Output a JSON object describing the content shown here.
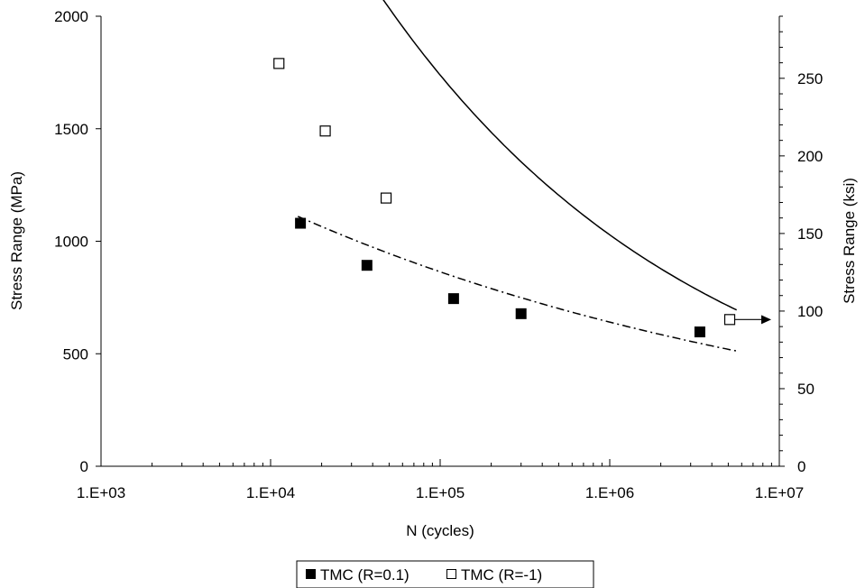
{
  "chart_data": {
    "type": "scatter",
    "xlabel": "N (cycles)",
    "ylabel": "Stress Range (MPa)",
    "y2label": "Stress Range (ksi)",
    "xscale": "log",
    "xlim": [
      1000,
      10000000
    ],
    "ylim": [
      0,
      2000
    ],
    "y2lim": [
      0,
      290
    ],
    "x_ticks": [
      1000,
      10000,
      100000,
      1000000,
      10000000
    ],
    "x_tick_labels": [
      "1.E+03",
      "1.E+04",
      "1.E+05",
      "1.E+06",
      "1.E+07"
    ],
    "y_ticks": [
      0,
      500,
      1000,
      1500,
      2000
    ],
    "y_tick_labels": [
      "0",
      "500",
      "1000",
      "1500",
      "2000"
    ],
    "y2_ticks": [
      0,
      50,
      100,
      150,
      200,
      250
    ],
    "y2_tick_labels": [
      "0",
      "50",
      "100",
      "150",
      "200",
      "250"
    ],
    "grid": false,
    "legend_position": "bottom",
    "series": [
      {
        "name": "TMC (R=0.1)",
        "marker": "filled-square",
        "color": "#000000",
        "points": [
          {
            "x": 15000,
            "y": 1080
          },
          {
            "x": 37000,
            "y": 893
          },
          {
            "x": 120000,
            "y": 745
          },
          {
            "x": 300000,
            "y": 678
          },
          {
            "x": 3400000,
            "y": 597
          }
        ],
        "fit": {
          "style": "dash-dot",
          "x": [
            14500,
            5600000
          ],
          "a": 3860,
          "b": -0.13
        }
      },
      {
        "name": "TMC (R=-1)",
        "marker": "open-square",
        "color": "#000000",
        "points": [
          {
            "x": 11200,
            "y": 1790
          },
          {
            "x": 21000,
            "y": 1490
          },
          {
            "x": 48000,
            "y": 1192
          },
          {
            "x": 5100000,
            "y": 652,
            "runout": true
          }
        ],
        "fit": {
          "style": "solid",
          "x": [
            11200,
            5600000
          ],
          "a": 24000,
          "b": -0.228
        }
      }
    ]
  }
}
